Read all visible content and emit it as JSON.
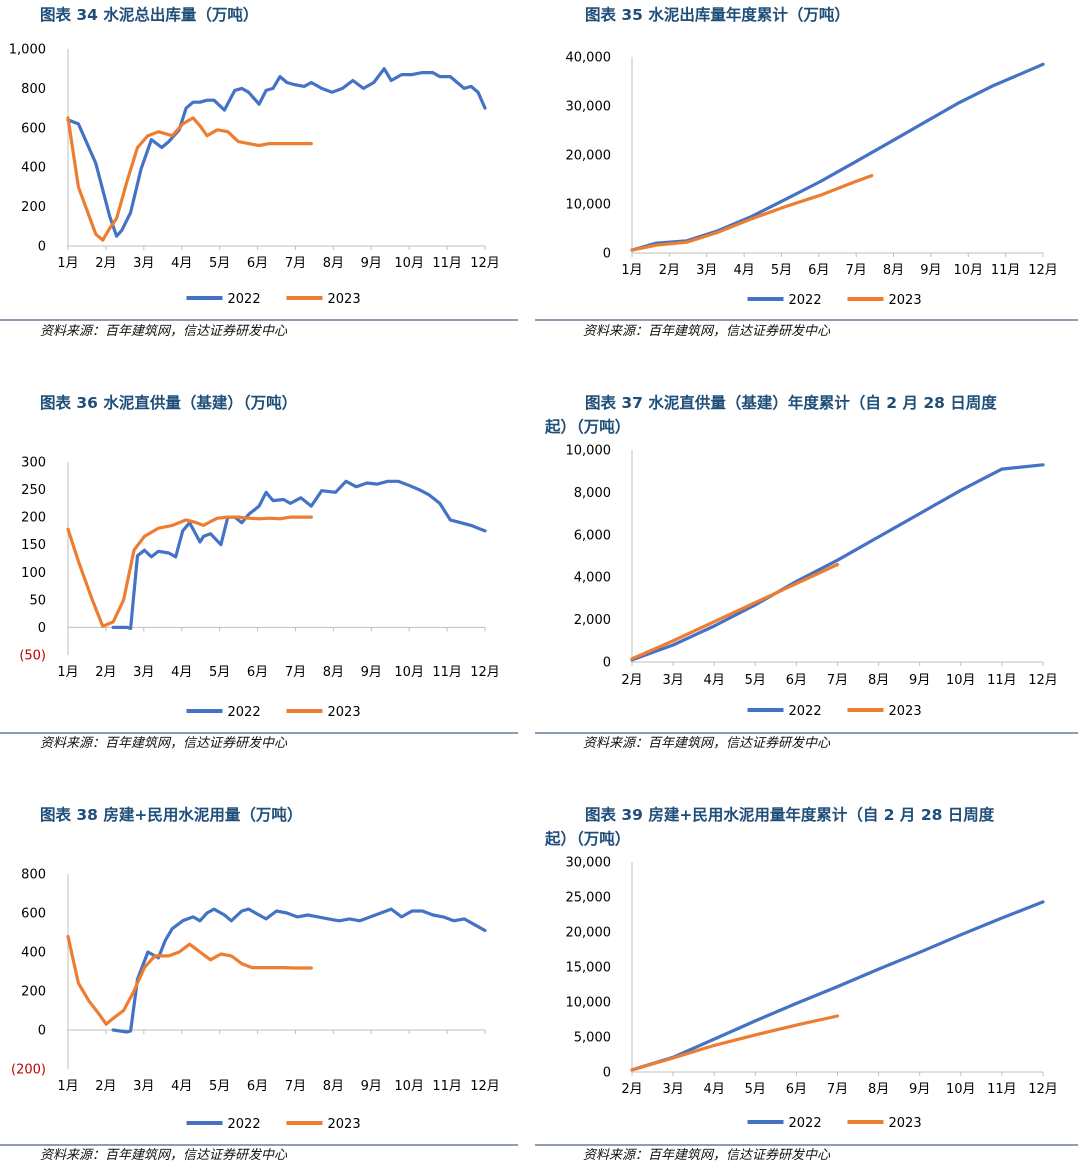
{
  "colors": {
    "s2022": "#4472c4",
    "s2023": "#ed7d31",
    "title": "#1f4e79",
    "negative": "#c00000"
  },
  "source_text": "资料来源：百年建筑网，信达证券研发中心",
  "chart_data": [
    {
      "type": "line",
      "title": "图表 34 水泥总出库量（万吨）",
      "ylim": [
        0,
        1000
      ],
      "yticks": [
        0,
        200,
        400,
        600,
        800,
        1000
      ],
      "ytick_labels": [
        "0",
        "200",
        "400",
        "600",
        "800",
        "1,000"
      ],
      "xlim": [
        0,
        12
      ],
      "xtick_labels": [
        "1月",
        "2月",
        "3月",
        "4月",
        "5月",
        "6月",
        "7月",
        "8月",
        "9月",
        "10月",
        "11月",
        "12月"
      ],
      "legend": "bottom-center",
      "series": [
        {
          "name": "2022",
          "color_key": "s2022",
          "x": [
            0,
            0.3,
            0.8,
            1.2,
            1.4,
            1.55,
            1.8,
            2.1,
            2.4,
            2.7,
            2.9,
            3.2,
            3.4,
            3.6,
            3.8,
            4,
            4.2,
            4.5,
            4.8,
            5.0,
            5.2,
            5.5,
            5.7,
            5.9,
            6.1,
            6.3,
            6.5,
            6.8,
            7.0,
            7.3,
            7.6,
            7.9,
            8.2,
            8.5,
            8.8,
            9.1,
            9.3,
            9.6,
            9.9,
            10.2,
            10.5,
            10.7,
            11.0,
            11.2,
            11.4,
            11.6,
            11.8,
            12.0
          ],
          "y": [
            640,
            620,
            420,
            150,
            50,
            80,
            170,
            390,
            540,
            500,
            530,
            590,
            700,
            730,
            730,
            740,
            740,
            690,
            790,
            800,
            780,
            720,
            790,
            800,
            860,
            830,
            820,
            810,
            830,
            800,
            780,
            800,
            840,
            800,
            830,
            900,
            840,
            870,
            870,
            880,
            880,
            860,
            860,
            830,
            800,
            810,
            780,
            700
          ]
        },
        {
          "name": "2023",
          "color_key": "s2023",
          "x": [
            0,
            0.3,
            0.8,
            1.0,
            1.2,
            1.4,
            1.7,
            2.0,
            2.3,
            2.6,
            3.0,
            3.3,
            3.6,
            3.8,
            4.0,
            4.3,
            4.6,
            4.9,
            5.2,
            5.5,
            5.8,
            6.1,
            6.4,
            6.7,
            7.0
          ],
          "y": [
            650,
            300,
            60,
            30,
            90,
            140,
            330,
            500,
            560,
            580,
            560,
            620,
            650,
            610,
            560,
            590,
            580,
            530,
            520,
            510,
            520,
            520,
            520,
            520,
            520
          ]
        }
      ]
    },
    {
      "type": "line",
      "title": "图表 35 水泥出库量年度累计（万吨）",
      "ylim": [
        0,
        40000
      ],
      "yticks": [
        0,
        10000,
        20000,
        30000,
        40000
      ],
      "ytick_labels": [
        "0",
        "10,000",
        "20,000",
        "30,000",
        "40,000"
      ],
      "xlim": [
        0,
        12
      ],
      "xtick_labels": [
        "1月",
        "2月",
        "3月",
        "4月",
        "5月",
        "6月",
        "7月",
        "8月",
        "9月",
        "10月",
        "11月",
        "12月"
      ],
      "legend": "bottom-center",
      "series": [
        {
          "name": "2022",
          "color_key": "s2022",
          "x": [
            0,
            0.7,
            1.6,
            2.5,
            3.5,
            4.5,
            5.5,
            6.5,
            7.5,
            8.5,
            9.5,
            10.5,
            11.5,
            12.0
          ],
          "y": [
            600,
            2000,
            2500,
            4500,
            7500,
            11000,
            14600,
            18500,
            22500,
            26500,
            30500,
            34000,
            37000,
            38500
          ]
        },
        {
          "name": "2023",
          "color_key": "s2023",
          "x": [
            0,
            0.7,
            1.6,
            2.5,
            3.5,
            4.5,
            5.5,
            6.5,
            7.0
          ],
          "y": [
            600,
            1600,
            2200,
            4200,
            7000,
            9500,
            11800,
            14500,
            15800
          ]
        }
      ]
    },
    {
      "type": "line",
      "title": "图表 36 水泥直供量（基建）（万吨）",
      "ylim": [
        -50,
        300
      ],
      "yticks": [
        -50,
        0,
        50,
        100,
        150,
        200,
        250,
        300
      ],
      "ytick_labels": [
        "(50)",
        "0",
        "50",
        "100",
        "150",
        "200",
        "250",
        "300"
      ],
      "xlim": [
        0,
        12
      ],
      "xtick_labels": [
        "1月",
        "2月",
        "3月",
        "4月",
        "5月",
        "6月",
        "7月",
        "8月",
        "9月",
        "10月",
        "11月",
        "12月"
      ],
      "legend": "bottom-center",
      "series": [
        {
          "name": "2022",
          "color_key": "s2022",
          "x": [
            1.3,
            1.7,
            1.8,
            2.0,
            2.2,
            2.4,
            2.6,
            2.9,
            3.1,
            3.3,
            3.5,
            3.8,
            3.9,
            4.1,
            4.4,
            4.6,
            4.8,
            5.0,
            5.2,
            5.5,
            5.7,
            5.9,
            6.2,
            6.4,
            6.7,
            7.0,
            7.3,
            7.7,
            8.0,
            8.3,
            8.6,
            8.9,
            9.2,
            9.5,
            9.8,
            10.1,
            10.4,
            10.7,
            11.0,
            11.3,
            11.6,
            11.8,
            12.0
          ],
          "y": [
            0,
            0,
            -2,
            130,
            140,
            128,
            138,
            135,
            128,
            175,
            190,
            155,
            165,
            170,
            150,
            200,
            200,
            190,
            205,
            220,
            245,
            230,
            232,
            225,
            235,
            220,
            248,
            245,
            265,
            255,
            262,
            260,
            265,
            265,
            258,
            250,
            240,
            225,
            195,
            190,
            185,
            180,
            175
          ]
        },
        {
          "name": "2023",
          "color_key": "s2023",
          "x": [
            0,
            0.3,
            0.7,
            1.0,
            1.3,
            1.6,
            1.9,
            2.2,
            2.6,
            3.0,
            3.4,
            3.7,
            3.9,
            4.1,
            4.3,
            4.6,
            4.9,
            5.2,
            5.5,
            5.8,
            6.1,
            6.4,
            6.7,
            7.0
          ],
          "y": [
            178,
            120,
            50,
            2,
            10,
            50,
            140,
            165,
            180,
            185,
            195,
            190,
            185,
            192,
            198,
            200,
            200,
            198,
            197,
            198,
            197,
            200,
            200,
            200
          ]
        }
      ]
    },
    {
      "type": "line",
      "title": "图表 37 水泥直供量（基建）年度累计（自 2 月 28 日周度起）（万吨）",
      "ylim": [
        0,
        10000
      ],
      "yticks": [
        0,
        2000,
        4000,
        6000,
        8000,
        10000
      ],
      "ytick_labels": [
        "0",
        "2,000",
        "4,000",
        "6,000",
        "8,000",
        "10,000"
      ],
      "xlim": [
        0,
        10
      ],
      "xtick_labels": [
        "2月",
        "3月",
        "4月",
        "5月",
        "6月",
        "7月",
        "8月",
        "9月",
        "10月",
        "11月",
        "12月"
      ],
      "legend": "bottom-center",
      "series": [
        {
          "name": "2022",
          "color_key": "s2022",
          "x": [
            0,
            1,
            2,
            3,
            4,
            5,
            6,
            7,
            8,
            9,
            10
          ],
          "y": [
            100,
            800,
            1700,
            2700,
            3800,
            4800,
            5900,
            7000,
            8100,
            9100,
            9300
          ]
        },
        {
          "name": "2023",
          "color_key": "s2023",
          "x": [
            0,
            1,
            2,
            3,
            4,
            5
          ],
          "y": [
            150,
            1000,
            1900,
            2800,
            3700,
            4600
          ]
        }
      ]
    },
    {
      "type": "line",
      "title": "图表 38 房建+民用水泥用量（万吨）",
      "ylim": [
        -200,
        800
      ],
      "yticks": [
        -200,
        0,
        200,
        400,
        600,
        800
      ],
      "ytick_labels": [
        "(200)",
        "0",
        "200",
        "400",
        "600",
        "800"
      ],
      "xlim": [
        0,
        12
      ],
      "xtick_labels": [
        "1月",
        "2月",
        "3月",
        "4月",
        "5月",
        "6月",
        "7月",
        "8月",
        "9月",
        "10月",
        "11月",
        "12月"
      ],
      "legend": "bottom-center",
      "series": [
        {
          "name": "2022",
          "color_key": "s2022",
          "x": [
            1.3,
            1.7,
            1.8,
            2.0,
            2.3,
            2.6,
            2.8,
            3.0,
            3.3,
            3.6,
            3.8,
            4.0,
            4.2,
            4.5,
            4.7,
            5.0,
            5.2,
            5.5,
            5.7,
            6.0,
            6.3,
            6.6,
            6.9,
            7.2,
            7.5,
            7.8,
            8.1,
            8.4,
            8.7,
            9.0,
            9.3,
            9.6,
            9.9,
            10.2,
            10.5,
            10.8,
            11.1,
            11.4,
            11.7,
            12.0
          ],
          "y": [
            0,
            -10,
            -5,
            260,
            400,
            370,
            460,
            520,
            560,
            580,
            560,
            600,
            620,
            590,
            560,
            610,
            620,
            590,
            570,
            610,
            600,
            580,
            590,
            580,
            570,
            560,
            570,
            560,
            580,
            600,
            620,
            580,
            610,
            610,
            590,
            580,
            560,
            570,
            540,
            510
          ]
        },
        {
          "name": "2023",
          "color_key": "s2023",
          "x": [
            0,
            0.3,
            0.6,
            0.9,
            1.1,
            1.3,
            1.6,
            1.9,
            2.2,
            2.5,
            2.9,
            3.2,
            3.5,
            3.8,
            4.1,
            4.4,
            4.7,
            5.0,
            5.3,
            5.6,
            5.9,
            6.2,
            6.5,
            6.8,
            7.0
          ],
          "y": [
            480,
            240,
            150,
            80,
            30,
            60,
            100,
            200,
            320,
            380,
            380,
            400,
            440,
            400,
            360,
            390,
            380,
            340,
            320,
            320,
            320,
            320,
            318,
            318,
            318
          ]
        }
      ]
    },
    {
      "type": "line",
      "title": "图表 39 房建+民用水泥用量年度累计（自 2 月 28 日周度起）（万吨）",
      "ylim": [
        0,
        30000
      ],
      "yticks": [
        0,
        5000,
        10000,
        15000,
        20000,
        25000,
        30000
      ],
      "ytick_labels": [
        "0",
        "5,000",
        "10,000",
        "15,000",
        "20,000",
        "25,000",
        "30,000"
      ],
      "xlim": [
        0,
        10
      ],
      "xtick_labels": [
        "2月",
        "3月",
        "4月",
        "5月",
        "6月",
        "7月",
        "8月",
        "9月",
        "10月",
        "11月",
        "12月"
      ],
      "legend": "bottom-center",
      "series": [
        {
          "name": "2022",
          "color_key": "s2022",
          "x": [
            0,
            1,
            2,
            3,
            4,
            5,
            6,
            7,
            8,
            9,
            10
          ],
          "y": [
            300,
            2100,
            4700,
            7300,
            9800,
            12200,
            14700,
            17100,
            19600,
            22000,
            24300
          ]
        },
        {
          "name": "2023",
          "color_key": "s2023",
          "x": [
            0,
            1,
            2,
            3,
            4,
            5
          ],
          "y": [
            300,
            2000,
            3800,
            5300,
            6700,
            8000
          ]
        }
      ]
    }
  ]
}
